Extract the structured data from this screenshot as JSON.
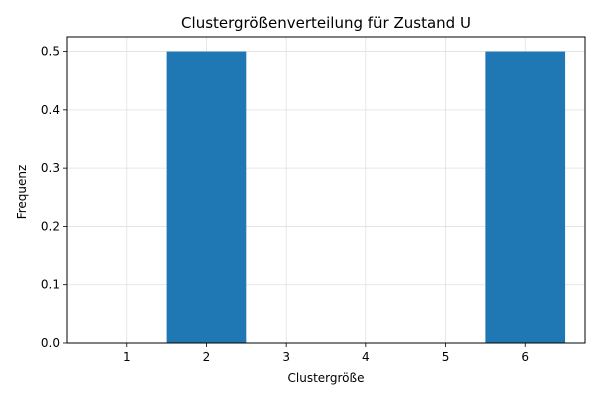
{
  "chart_data": {
    "type": "bar",
    "title": "Clustergrößenverteilung für Zustand U",
    "xlabel": "Clustergröße",
    "ylabel": "Frequenz",
    "x": [
      1,
      2,
      3,
      4,
      5,
      6
    ],
    "values": [
      0.0,
      0.5,
      0.0,
      0.0,
      0.0,
      0.5
    ],
    "xlim": [
      0.25,
      6.75
    ],
    "ylim": [
      0,
      0.525
    ],
    "yticks": [
      0.0,
      0.1,
      0.2,
      0.3,
      0.4,
      0.5
    ],
    "ytick_labels": [
      "0.0",
      "0.1",
      "0.2",
      "0.3",
      "0.4",
      "0.5"
    ],
    "xtick_labels": [
      "1",
      "2",
      "3",
      "4",
      "5",
      "6"
    ],
    "bar_width": 1.0,
    "grid": true,
    "colors": {
      "bar": "#1f77b4",
      "grid": "#e0e0e0",
      "axis": "#000000"
    }
  }
}
